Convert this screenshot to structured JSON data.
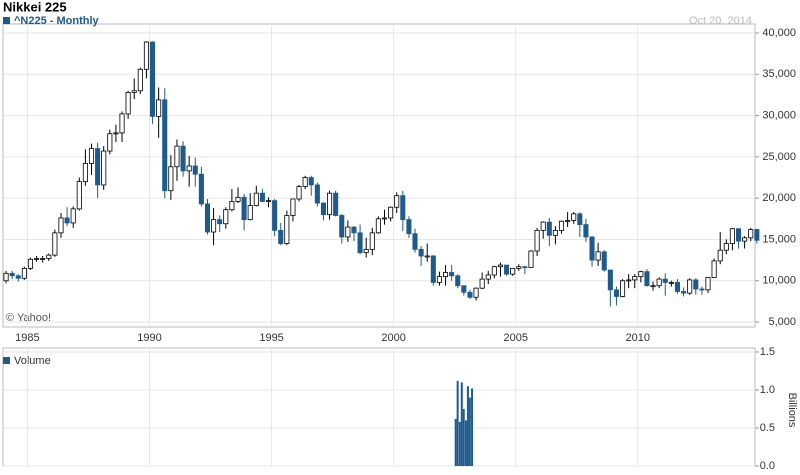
{
  "chart_data": [
    {
      "type": "candlestick",
      "title": "Nikkei 225",
      "date": "Oct 20, 2014",
      "watermark": "© Yahoo!",
      "series_name": "^N225 - Monthly",
      "up_color": "#ffffff",
      "down_color": "#1f5a8c",
      "outline_color": "#000000",
      "x": [
        1984,
        1984.25,
        1984.5,
        1984.75,
        1985,
        1985.25,
        1985.5,
        1985.75,
        1986,
        1986.25,
        1986.5,
        1986.75,
        1987,
        1987.25,
        1987.5,
        1987.75,
        1988,
        1988.25,
        1988.5,
        1988.75,
        1989,
        1989.25,
        1989.5,
        1989.75,
        1990,
        1990.25,
        1990.5,
        1990.75,
        1991,
        1991.25,
        1991.5,
        1991.75,
        1992,
        1992.25,
        1992.5,
        1992.75,
        1993,
        1993.25,
        1993.5,
        1993.75,
        1994,
        1994.25,
        1994.5,
        1994.75,
        1995,
        1995.25,
        1995.5,
        1995.75,
        1996,
        1996.25,
        1996.5,
        1996.75,
        1997,
        1997.25,
        1997.5,
        1997.75,
        1998,
        1998.25,
        1998.5,
        1998.75,
        1999,
        1999.25,
        1999.5,
        1999.75,
        2000,
        2000.25,
        2000.5,
        2000.75,
        2001,
        2001.25,
        2001.5,
        2001.75,
        2002,
        2002.25,
        2002.5,
        2002.75,
        2003,
        2003.25,
        2003.5,
        2003.75,
        2004,
        2004.25,
        2004.5,
        2004.75,
        2005,
        2005.25,
        2005.5,
        2005.75,
        2006,
        2006.25,
        2006.5,
        2006.75,
        2007,
        2007.25,
        2007.5,
        2007.75,
        2008,
        2008.25,
        2008.5,
        2008.75,
        2009,
        2009.25,
        2009.5,
        2009.75,
        2010,
        2010.25,
        2010.5,
        2010.75,
        2011,
        2011.25,
        2011.5,
        2011.75,
        2012,
        2012.25,
        2012.5,
        2012.75,
        2013,
        2013.25,
        2013.5,
        2013.75,
        2014,
        2014.25,
        2014.5,
        2014.75
      ],
      "open": [
        10000,
        10900,
        10600,
        10300,
        11500,
        12600,
        12700,
        12700,
        13100,
        15800,
        17600,
        17000,
        18700,
        22000,
        24200,
        26000,
        21600,
        25700,
        27800,
        27900,
        30200,
        32800,
        33000,
        35600,
        38900,
        29900,
        31900,
        20900,
        23800,
        26300,
        23300,
        23900,
        22900,
        19300,
        15900,
        17400,
        16900,
        18600,
        19600,
        20100,
        17400,
        19100,
        20600,
        19600,
        19700,
        16100,
        14500,
        17900,
        19900,
        21400,
        22500,
        21600,
        19400,
        18000,
        20600,
        17900,
        15300,
        16500,
        15800,
        13400,
        13800,
        15800,
        17500,
        17600,
        18900,
        20300,
        17400,
        15700,
        13800,
        13000,
        13000,
        9800,
        10500,
        11000,
        10600,
        9400,
        8600,
        8000,
        9100,
        10200,
        10700,
        11700,
        11900,
        10800,
        11500,
        11700,
        11600,
        13600,
        16100,
        17100,
        15500,
        16100,
        17200,
        17300,
        18100,
        16800,
        15300,
        12500,
        13500,
        11300,
        8900,
        8100,
        10000,
        10100,
        10500,
        11100,
        9400,
        9400,
        10200,
        9800,
        9800,
        8700,
        8500,
        10100,
        9000,
        8900,
        10400,
        12400,
        13700,
        14500,
        16300,
        14800,
        15200,
        16200
      ],
      "high": [
        11200,
        11200,
        10800,
        11700,
        12800,
        13000,
        13000,
        13300,
        16200,
        18200,
        18900,
        19000,
        22500,
        25900,
        26600,
        26700,
        26300,
        28300,
        28900,
        30500,
        33000,
        34500,
        35800,
        39000,
        39000,
        33400,
        33300,
        25200,
        27100,
        26900,
        25100,
        24900,
        23800,
        19900,
        18800,
        17900,
        18900,
        21100,
        21300,
        20500,
        20600,
        21500,
        21100,
        20100,
        19900,
        17000,
        18500,
        19900,
        21600,
        22700,
        22700,
        21900,
        19500,
        20900,
        20900,
        18100,
        17300,
        16600,
        16800,
        15200,
        16400,
        17800,
        18600,
        19000,
        20700,
        20900,
        17800,
        16300,
        14200,
        14500,
        13100,
        11100,
        11900,
        11900,
        10800,
        9400,
        8900,
        9200,
        11000,
        11200,
        11800,
        12200,
        11900,
        11500,
        12000,
        11800,
        13700,
        16400,
        17200,
        17600,
        16600,
        17300,
        18300,
        18300,
        18300,
        17500,
        15400,
        14600,
        13700,
        11300,
        9300,
        10200,
        10800,
        10800,
        11200,
        11400,
        9900,
        10400,
        10900,
        10000,
        10200,
        9200,
        10300,
        10300,
        9300,
        10400,
        12700,
        15900,
        15000,
        16400,
        16300,
        15400,
        16400,
        16300
      ],
      "low": [
        9700,
        10200,
        9900,
        10100,
        11300,
        12300,
        12200,
        12400,
        12900,
        15200,
        16600,
        16400,
        18500,
        21500,
        22800,
        20000,
        21000,
        25300,
        26800,
        26800,
        29600,
        32000,
        32600,
        34500,
        29000,
        27300,
        20000,
        19800,
        22100,
        22600,
        21400,
        21400,
        19000,
        15600,
        14300,
        15900,
        16300,
        18400,
        19400,
        16100,
        17300,
        19000,
        19500,
        18900,
        15400,
        14300,
        14300,
        17200,
        19600,
        21100,
        20300,
        19000,
        17300,
        17400,
        17800,
        14500,
        14700,
        14800,
        13200,
        12800,
        13100,
        15700,
        16800,
        17200,
        18200,
        16000,
        15200,
        13400,
        11800,
        12300,
        9400,
        9400,
        9400,
        10000,
        9100,
        8200,
        7800,
        7600,
        9000,
        9600,
        10300,
        10500,
        10600,
        10600,
        11200,
        10800,
        11600,
        13000,
        15100,
        14200,
        14400,
        15700,
        16500,
        16900,
        15300,
        14700,
        11700,
        11800,
        11100,
        6900,
        7000,
        8000,
        9100,
        9100,
        9800,
        9300,
        8800,
        9100,
        8200,
        9300,
        8400,
        8100,
        8300,
        8300,
        8300,
        8500,
        10400,
        12000,
        13200,
        13700,
        13900,
        13900,
        14800,
        14500
      ],
      "close": [
        10900,
        10600,
        10300,
        11500,
        12600,
        12700,
        12700,
        13100,
        15800,
        17600,
        17000,
        18700,
        22000,
        24200,
        26000,
        21600,
        25700,
        27800,
        27900,
        30200,
        32800,
        33000,
        35600,
        38900,
        29900,
        31900,
        20900,
        23800,
        26300,
        23300,
        23900,
        22900,
        19300,
        15900,
        17400,
        16900,
        18600,
        19600,
        20100,
        17400,
        19100,
        20600,
        19600,
        19700,
        16100,
        14500,
        17900,
        19900,
        21400,
        22500,
        21600,
        19400,
        18000,
        20600,
        17900,
        15300,
        16500,
        15800,
        13400,
        13800,
        15800,
        17500,
        17600,
        18900,
        20300,
        17400,
        15700,
        13800,
        13000,
        13000,
        9800,
        10500,
        11000,
        10600,
        9400,
        8600,
        8000,
        9100,
        10200,
        10700,
        11700,
        11900,
        10800,
        11500,
        11700,
        11600,
        13600,
        16100,
        17100,
        15500,
        16100,
        17200,
        17300,
        18100,
        16800,
        15300,
        12500,
        13500,
        11300,
        8900,
        8100,
        10000,
        10100,
        10500,
        11100,
        9400,
        9400,
        10200,
        9800,
        9800,
        8700,
        8500,
        10100,
        9000,
        8900,
        10400,
        12400,
        13700,
        14500,
        16300,
        14800,
        15200,
        16200,
        14900
      ],
      "xlim": [
        1984,
        2014.8
      ],
      "xticks": [
        1985,
        1990,
        1995,
        2000,
        2005,
        2010
      ],
      "ylim": [
        4400,
        40600
      ],
      "yticks": [
        {
          "value": 5000,
          "label": "5,000"
        },
        {
          "value": 10000,
          "label": "10,000"
        },
        {
          "value": 15000,
          "label": "15,000"
        },
        {
          "value": 20000,
          "label": "20,000"
        },
        {
          "value": 25000,
          "label": "25,000"
        },
        {
          "value": 30000,
          "label": "30,000"
        },
        {
          "value": 35000,
          "label": "35,000"
        },
        {
          "value": 40000,
          "label": "40,000"
        }
      ],
      "grid": true
    },
    {
      "type": "bar",
      "series_name": "Volume",
      "color": "#1f5a8c",
      "ylabel": "Billions",
      "x": [
        2002.5,
        2002.58,
        2002.67,
        2002.75,
        2002.83,
        2002.92,
        2003,
        2003.08,
        2003.17
      ],
      "values": [
        0.62,
        1.12,
        0.58,
        1.1,
        0.75,
        0.6,
        1.05,
        0.9,
        1.02
      ],
      "xlim": [
        1984,
        2014.8
      ],
      "xticks": [
        1985,
        1990,
        1995,
        2000,
        2005,
        2010
      ],
      "ylim": [
        0,
        1.5
      ],
      "yticks": [
        {
          "value": 0,
          "label": "0.0"
        },
        {
          "value": 0.5,
          "label": "0.5"
        },
        {
          "value": 1,
          "label": "1.0"
        },
        {
          "value": 1.5,
          "label": "1.5"
        }
      ],
      "grid": true
    }
  ]
}
